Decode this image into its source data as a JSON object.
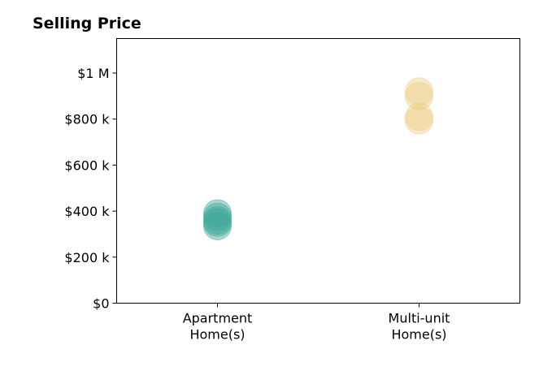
{
  "chart_data": {
    "type": "scatter",
    "title": "Selling Price",
    "xlabel": "",
    "ylabel": "",
    "categories": [
      [
        "Apartment",
        "Home(s)"
      ],
      [
        "Multi-unit",
        "Home(s)"
      ]
    ],
    "yticks": [
      {
        "value": 0,
        "label": "$0"
      },
      {
        "value": 200000,
        "label": "$200 k"
      },
      {
        "value": 400000,
        "label": "$400 k"
      },
      {
        "value": 600000,
        "label": "$600 k"
      },
      {
        "value": 800000,
        "label": "$800 k"
      },
      {
        "value": 1000000,
        "label": "$1 M"
      }
    ],
    "ylim": [
      0,
      1150000
    ],
    "xlim": [
      -0.5,
      1.5
    ],
    "grid": false,
    "series": [
      {
        "category_index": 0,
        "color": "#3ea99a",
        "values": [
          390000,
          375000,
          360000,
          350000,
          335000
        ]
      },
      {
        "category_index": 1,
        "color": "#edcf8a",
        "values": [
          920000,
          900000,
          810000,
          795000
        ]
      }
    ]
  }
}
